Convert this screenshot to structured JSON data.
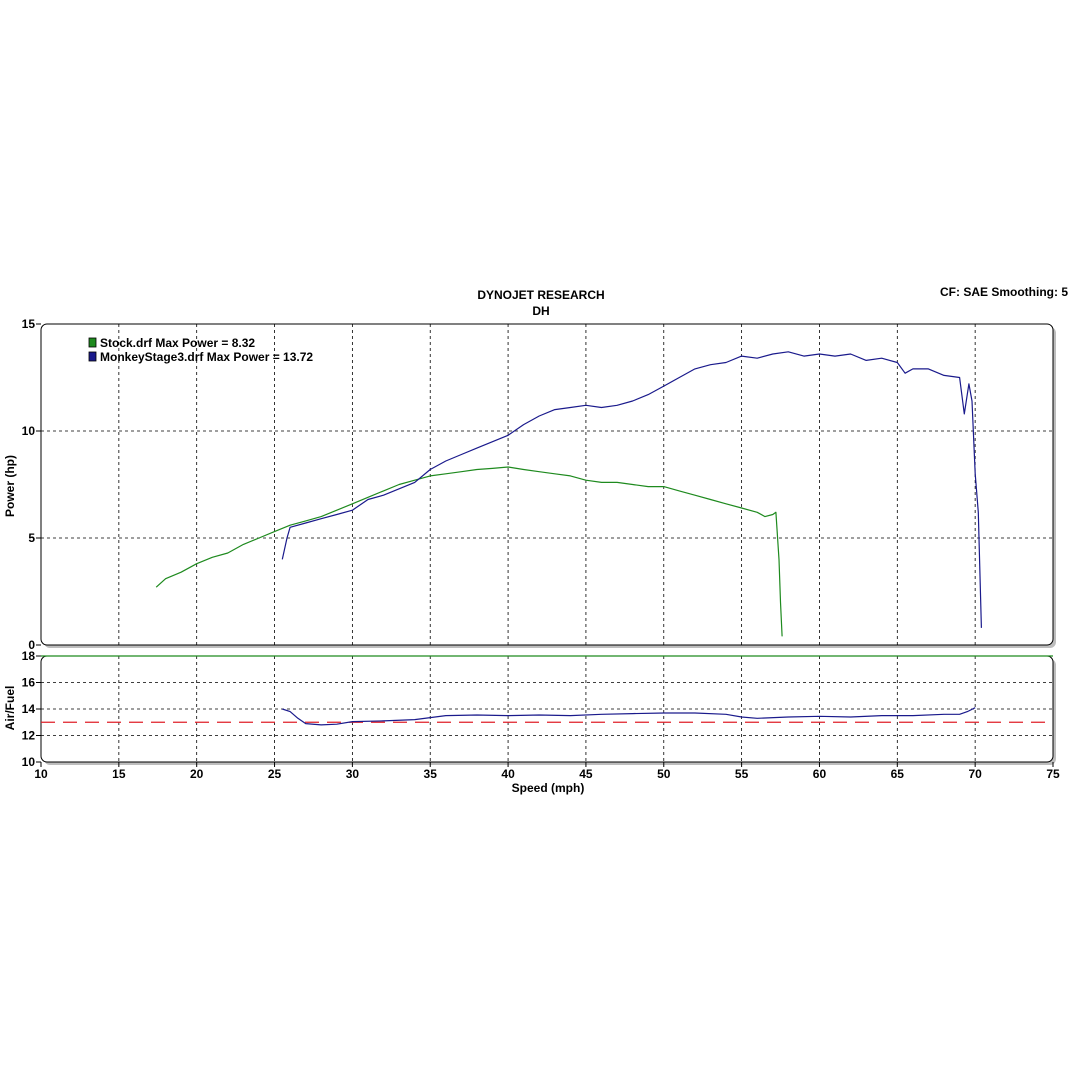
{
  "header": {
    "title": "DYNOJET RESEARCH",
    "subtitle": "DH",
    "info": "CF: SAE  Smoothing: 5"
  },
  "colors": {
    "series_stock": "#1e8a1e",
    "series_stage3": "#1a1a8c",
    "reference_line": "#e0202a",
    "grid": "#000000"
  },
  "chart_data": [
    {
      "type": "line",
      "ylabel": "Power (hp)",
      "xlim": [
        10,
        75
      ],
      "ylim": [
        0,
        15
      ],
      "x_ticks": [
        10,
        15,
        20,
        25,
        30,
        35,
        40,
        45,
        50,
        55,
        60,
        65,
        70,
        75
      ],
      "y_ticks": [
        0,
        5,
        10,
        15
      ],
      "grid": true,
      "legend": "top-left",
      "legend_entries": [
        "Stock.drf Max Power = 8.32",
        "MonkeyStage3.drf Max Power = 13.72"
      ],
      "series": [
        {
          "name": "Stock.drf",
          "color": "#1e8a1e",
          "x": [
            17.4,
            18,
            19,
            20,
            21,
            22,
            23,
            24,
            25,
            26,
            27,
            28,
            29,
            30,
            31,
            32,
            33,
            34,
            35,
            36,
            37,
            38,
            39,
            40,
            41,
            42,
            43,
            44,
            45,
            46,
            47,
            48,
            49,
            50,
            51,
            52,
            53,
            54,
            55,
            56,
            56.5,
            57,
            57.2,
            57.4,
            57.5,
            57.6
          ],
          "y": [
            2.7,
            3.1,
            3.4,
            3.8,
            4.1,
            4.3,
            4.7,
            5.0,
            5.3,
            5.6,
            5.8,
            6.0,
            6.3,
            6.6,
            6.9,
            7.2,
            7.5,
            7.7,
            7.9,
            8.0,
            8.1,
            8.2,
            8.25,
            8.32,
            8.2,
            8.1,
            8.0,
            7.9,
            7.7,
            7.6,
            7.6,
            7.5,
            7.4,
            7.4,
            7.2,
            7.0,
            6.8,
            6.6,
            6.4,
            6.2,
            6.0,
            6.1,
            6.2,
            4.0,
            2.0,
            0.4
          ]
        },
        {
          "name": "MonkeyStage3.drf",
          "color": "#1a1a8c",
          "x": [
            25.5,
            25.8,
            26,
            27,
            28,
            29,
            30,
            31,
            32,
            33,
            34,
            35,
            36,
            37,
            38,
            39,
            40,
            41,
            42,
            43,
            44,
            45,
            46,
            47,
            48,
            49,
            50,
            51,
            52,
            53,
            54,
            55,
            56,
            57,
            58,
            59,
            60,
            61,
            62,
            63,
            64,
            65,
            65.5,
            66,
            67,
            68,
            69,
            69.3,
            69.6,
            69.8,
            70,
            70.2,
            70.4
          ],
          "y": [
            4.0,
            5.0,
            5.5,
            5.7,
            5.9,
            6.1,
            6.3,
            6.8,
            7.0,
            7.3,
            7.6,
            8.2,
            8.6,
            8.9,
            9.2,
            9.5,
            9.8,
            10.3,
            10.7,
            11.0,
            11.1,
            11.2,
            11.1,
            11.2,
            11.4,
            11.7,
            12.1,
            12.5,
            12.9,
            13.1,
            13.2,
            13.5,
            13.4,
            13.6,
            13.7,
            13.5,
            13.6,
            13.5,
            13.6,
            13.3,
            13.4,
            13.2,
            12.7,
            12.9,
            12.9,
            12.6,
            12.5,
            10.8,
            12.2,
            11.4,
            8.0,
            6.2,
            0.8
          ]
        }
      ]
    },
    {
      "type": "line",
      "ylabel": "Air/Fuel",
      "xlabel": "Speed (mph)",
      "xlim": [
        10,
        75
      ],
      "ylim": [
        10,
        18
      ],
      "x_ticks": [
        10,
        15,
        20,
        25,
        30,
        35,
        40,
        45,
        50,
        55,
        60,
        65,
        70,
        75
      ],
      "y_ticks": [
        10,
        12,
        14,
        16,
        18
      ],
      "grid": true,
      "reference_line": {
        "y": 13.0,
        "color": "#e0202a",
        "style": "dashed"
      },
      "series": [
        {
          "name": "MonkeyStage3.drf",
          "color": "#1a1a8c",
          "x": [
            25.5,
            26,
            26.5,
            27,
            28,
            29,
            30,
            32,
            34,
            36,
            38,
            40,
            42,
            44,
            46,
            48,
            50,
            52,
            54,
            55,
            56,
            58,
            60,
            62,
            64,
            66,
            68,
            69,
            69.5,
            70
          ],
          "y": [
            14.0,
            13.8,
            13.3,
            12.9,
            12.8,
            12.85,
            13.05,
            13.1,
            13.2,
            13.5,
            13.55,
            13.5,
            13.55,
            13.5,
            13.6,
            13.65,
            13.7,
            13.7,
            13.6,
            13.4,
            13.3,
            13.4,
            13.45,
            13.4,
            13.5,
            13.5,
            13.6,
            13.6,
            13.8,
            14.1
          ]
        },
        {
          "name": "Stock.drf",
          "color": "#1e8a1e",
          "x": [
            10,
            75
          ],
          "y": [
            18,
            18
          ]
        }
      ]
    }
  ]
}
